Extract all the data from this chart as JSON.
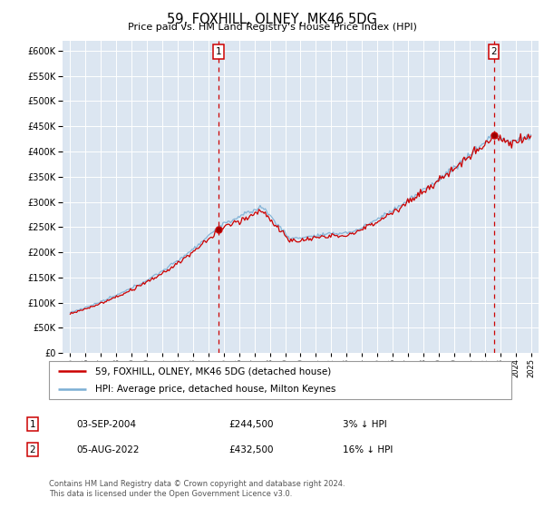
{
  "title": "59, FOXHILL, OLNEY, MK46 5DG",
  "subtitle": "Price paid vs. HM Land Registry's House Price Index (HPI)",
  "ylim": [
    0,
    620000
  ],
  "yticks": [
    0,
    50000,
    100000,
    150000,
    200000,
    250000,
    300000,
    350000,
    400000,
    450000,
    500000,
    550000,
    600000
  ],
  "xlim_start": 1994.5,
  "xlim_end": 2025.5,
  "background_color": "#dce6f1",
  "line1_color": "#cc0000",
  "line2_color": "#7bafd4",
  "grid_color": "#ffffff",
  "marker1_date": 2004.67,
  "marker1_value": 244500,
  "marker1_label": "1",
  "marker2_date": 2022.58,
  "marker2_value": 432500,
  "marker2_label": "2",
  "vline_color": "#cc0000",
  "legend1_text": "59, FOXHILL, OLNEY, MK46 5DG (detached house)",
  "legend2_text": "HPI: Average price, detached house, Milton Keynes",
  "annotation1_date": "03-SEP-2004",
  "annotation1_price": "£244,500",
  "annotation1_pct": "3% ↓ HPI",
  "annotation2_date": "05-AUG-2022",
  "annotation2_price": "£432,500",
  "annotation2_pct": "16% ↓ HPI",
  "footer": "Contains HM Land Registry data © Crown copyright and database right 2024.\nThis data is licensed under the Open Government Licence v3.0."
}
